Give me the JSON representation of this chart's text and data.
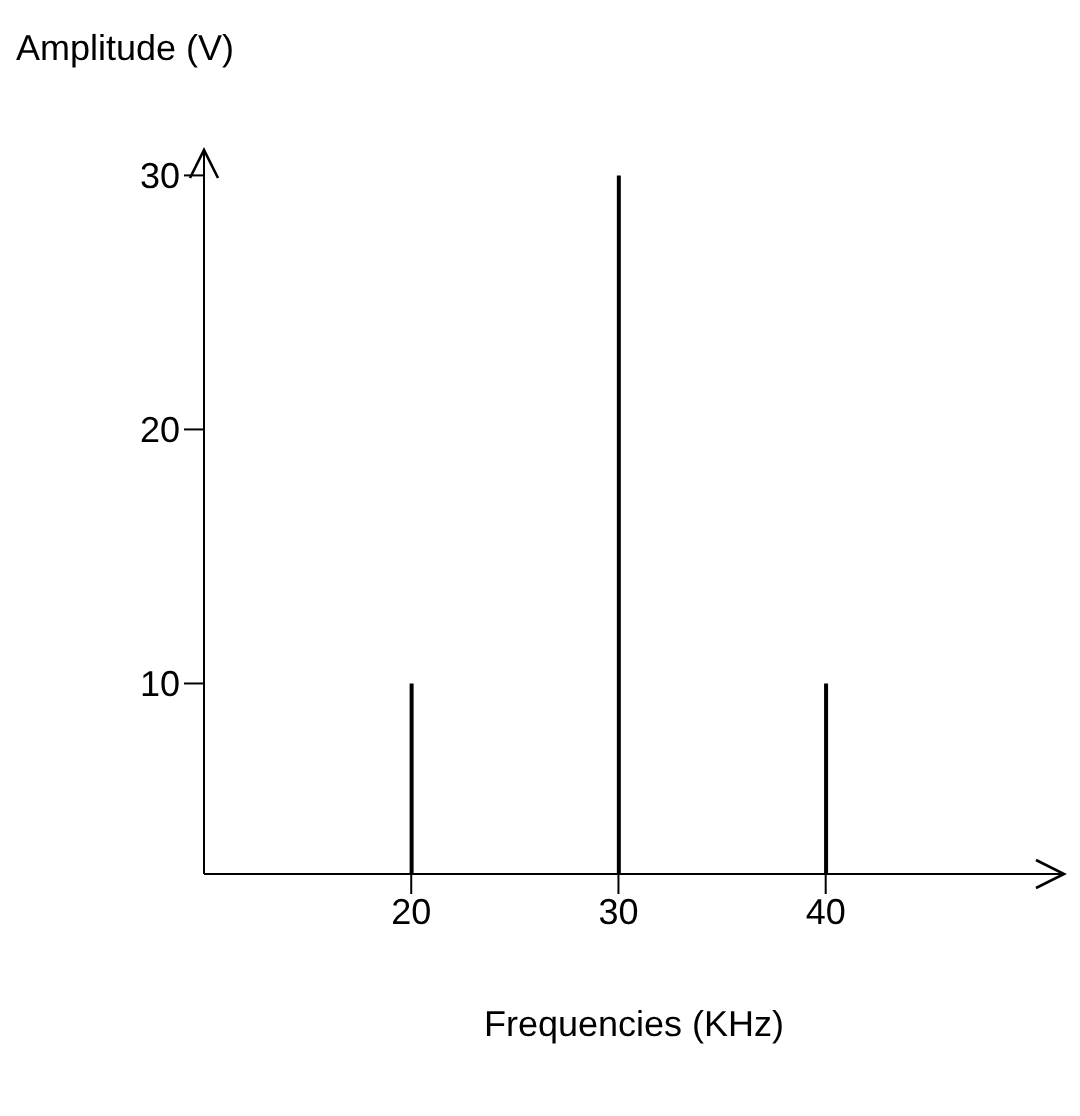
{
  "chart_data": {
    "type": "bar",
    "xlabel": "Frequencies (KHz)",
    "ylabel": "Amplitude (V)",
    "x": [
      20,
      30,
      40
    ],
    "values": [
      10,
      30,
      10
    ],
    "color": "#000000",
    "xlim": [
      10,
      51.5
    ],
    "ylim": [
      2.5,
      31
    ],
    "xticks": [
      20,
      30,
      40
    ],
    "yticks": [
      10,
      20,
      30
    ]
  }
}
